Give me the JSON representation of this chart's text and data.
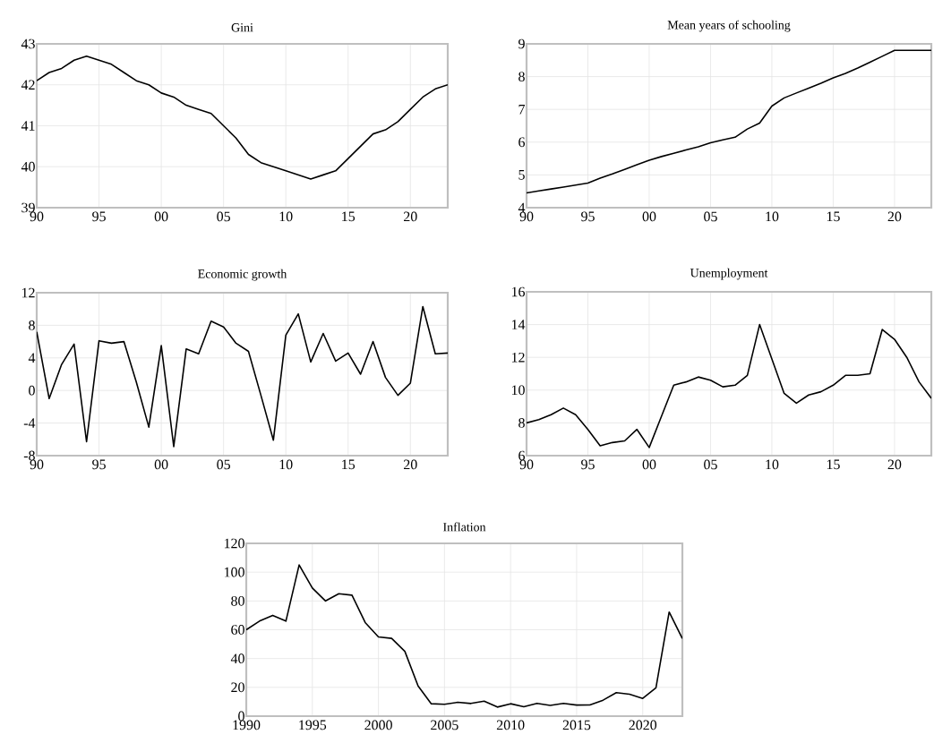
{
  "chart_data": [
    {
      "type": "line",
      "title": "Gini",
      "x": [
        1990,
        1991,
        1992,
        1993,
        1994,
        1995,
        1996,
        1997,
        1998,
        1999,
        2000,
        2001,
        2002,
        2003,
        2004,
        2005,
        2006,
        2007,
        2008,
        2009,
        2010,
        2011,
        2012,
        2013,
        2014,
        2015,
        2016,
        2017,
        2018,
        2019,
        2020,
        2021,
        2022,
        2023
      ],
      "series": [
        {
          "color": "#000000",
          "values": [
            42.1,
            42.3,
            42.4,
            42.6,
            42.7,
            42.6,
            42.5,
            42.3,
            42.1,
            42.0,
            41.8,
            41.7,
            41.5,
            41.4,
            41.3,
            41.0,
            40.7,
            40.3,
            40.1,
            40.0,
            39.9,
            39.8,
            39.7,
            39.8,
            39.9,
            40.2,
            40.5,
            40.8,
            40.9,
            41.1,
            41.4,
            41.7,
            41.9,
            42.0
          ]
        }
      ],
      "xlim": [
        1990,
        2023
      ],
      "ylim": [
        39,
        43
      ],
      "yticks": [
        39,
        40,
        41,
        42,
        43
      ],
      "xticks": [
        {
          "value": 1990,
          "label": "90"
        },
        {
          "value": 1995,
          "label": "95"
        },
        {
          "value": 2000,
          "label": "00"
        },
        {
          "value": 2005,
          "label": "05"
        },
        {
          "value": 2010,
          "label": "10"
        },
        {
          "value": 2015,
          "label": "15"
        },
        {
          "value": 2020,
          "label": "20"
        }
      ],
      "grid": true
    },
    {
      "type": "line",
      "title": "Mean years of schooling",
      "x": [
        1990,
        1991,
        1992,
        1993,
        1994,
        1995,
        1996,
        1997,
        1998,
        1999,
        2000,
        2001,
        2002,
        2003,
        2004,
        2005,
        2006,
        2007,
        2008,
        2009,
        2010,
        2011,
        2012,
        2013,
        2014,
        2015,
        2016,
        2017,
        2018,
        2019,
        2020,
        2021,
        2022,
        2023
      ],
      "series": [
        {
          "color": "#000000",
          "values": [
            4.45,
            4.51,
            4.57,
            4.63,
            4.69,
            4.75,
            4.9,
            5.03,
            5.17,
            5.31,
            5.45,
            5.56,
            5.66,
            5.76,
            5.86,
            5.98,
            6.07,
            6.15,
            6.4,
            6.58,
            7.1,
            7.35,
            7.5,
            7.65,
            7.8,
            7.96,
            8.1,
            8.26,
            8.44,
            8.62,
            8.8,
            8.8,
            8.8,
            8.8
          ]
        }
      ],
      "xlim": [
        1990,
        2023
      ],
      "ylim": [
        4,
        9
      ],
      "yticks": [
        4,
        5,
        6,
        7,
        8,
        9
      ],
      "xticks": [
        {
          "value": 1990,
          "label": "90"
        },
        {
          "value": 1995,
          "label": "95"
        },
        {
          "value": 2000,
          "label": "00"
        },
        {
          "value": 2005,
          "label": "05"
        },
        {
          "value": 2010,
          "label": "10"
        },
        {
          "value": 2015,
          "label": "15"
        },
        {
          "value": 2020,
          "label": "20"
        }
      ],
      "grid": true
    },
    {
      "type": "line",
      "title": "Economic growth",
      "x": [
        1990,
        1991,
        1992,
        1993,
        1994,
        1995,
        1996,
        1997,
        1998,
        1999,
        2000,
        2001,
        2002,
        2003,
        2004,
        2005,
        2006,
        2007,
        2008,
        2009,
        2010,
        2011,
        2012,
        2013,
        2014,
        2015,
        2016,
        2017,
        2018,
        2019,
        2020,
        2021,
        2022,
        2023
      ],
      "series": [
        {
          "color": "#000000",
          "values": [
            7.2,
            -1.0,
            3.2,
            5.7,
            -6.3,
            6.1,
            5.8,
            6.0,
            1.0,
            -4.5,
            5.5,
            -6.9,
            5.1,
            4.5,
            8.5,
            7.8,
            5.8,
            4.8,
            -0.6,
            -6.1,
            6.8,
            9.4,
            3.5,
            7.0,
            3.6,
            4.6,
            2.0,
            6.0,
            1.6,
            -0.6,
            0.9,
            10.3,
            4.5,
            4.6
          ]
        }
      ],
      "xlim": [
        1990,
        2023
      ],
      "ylim": [
        -8,
        12
      ],
      "yticks": [
        -8,
        -4,
        0,
        4,
        8,
        12
      ],
      "xticks": [
        {
          "value": 1990,
          "label": "90"
        },
        {
          "value": 1995,
          "label": "95"
        },
        {
          "value": 2000,
          "label": "00"
        },
        {
          "value": 2005,
          "label": "05"
        },
        {
          "value": 2010,
          "label": "10"
        },
        {
          "value": 2015,
          "label": "15"
        },
        {
          "value": 2020,
          "label": "20"
        }
      ],
      "grid": true
    },
    {
      "type": "line",
      "title": "Unemployment",
      "x": [
        1990,
        1991,
        1992,
        1993,
        1994,
        1995,
        1996,
        1997,
        1998,
        1999,
        2000,
        2001,
        2002,
        2003,
        2004,
        2005,
        2006,
        2007,
        2008,
        2009,
        2010,
        2011,
        2012,
        2013,
        2014,
        2015,
        2016,
        2017,
        2018,
        2019,
        2020,
        2021,
        2022,
        2023
      ],
      "series": [
        {
          "color": "#000000",
          "values": [
            8.0,
            8.2,
            8.5,
            8.9,
            8.5,
            7.6,
            6.6,
            6.8,
            6.9,
            7.6,
            6.5,
            8.4,
            10.3,
            10.5,
            10.8,
            10.6,
            10.2,
            10.3,
            10.9,
            14.0,
            11.9,
            9.8,
            9.2,
            9.7,
            9.9,
            10.3,
            10.9,
            10.9,
            11.0,
            13.7,
            13.1,
            12.0,
            10.5,
            9.5
          ]
        }
      ],
      "xlim": [
        1990,
        2023
      ],
      "ylim": [
        6,
        16
      ],
      "yticks": [
        6,
        8,
        10,
        12,
        14,
        16
      ],
      "xticks": [
        {
          "value": 1990,
          "label": "90"
        },
        {
          "value": 1995,
          "label": "95"
        },
        {
          "value": 2000,
          "label": "00"
        },
        {
          "value": 2005,
          "label": "05"
        },
        {
          "value": 2010,
          "label": "10"
        },
        {
          "value": 2015,
          "label": "15"
        },
        {
          "value": 2020,
          "label": "20"
        }
      ],
      "grid": true
    },
    {
      "type": "line",
      "title": "Inflation",
      "x": [
        1990,
        1991,
        1992,
        1993,
        1994,
        1995,
        1996,
        1997,
        1998,
        1999,
        2000,
        2001,
        2002,
        2003,
        2004,
        2005,
        2006,
        2007,
        2008,
        2009,
        2010,
        2011,
        2012,
        2013,
        2014,
        2015,
        2016,
        2017,
        2018,
        2019,
        2020,
        2021,
        2022,
        2023
      ],
      "series": [
        {
          "color": "#000000",
          "values": [
            60,
            66,
            70,
            66,
            105,
            89,
            80,
            85,
            84,
            65,
            55,
            54,
            45,
            21,
            8.6,
            8.2,
            9.6,
            8.8,
            10.4,
            6.3,
            8.6,
            6.5,
            8.9,
            7.5,
            8.9,
            7.7,
            7.8,
            11.1,
            16.3,
            15.2,
            12.3,
            19.6,
            72.3,
            53.9
          ]
        }
      ],
      "xlim": [
        1990,
        2023
      ],
      "ylim": [
        0,
        120
      ],
      "yticks": [
        0,
        20,
        40,
        60,
        80,
        100,
        120
      ],
      "xticks": [
        1990,
        1995,
        2000,
        2005,
        2010,
        2015,
        2020
      ],
      "grid": true
    }
  ]
}
